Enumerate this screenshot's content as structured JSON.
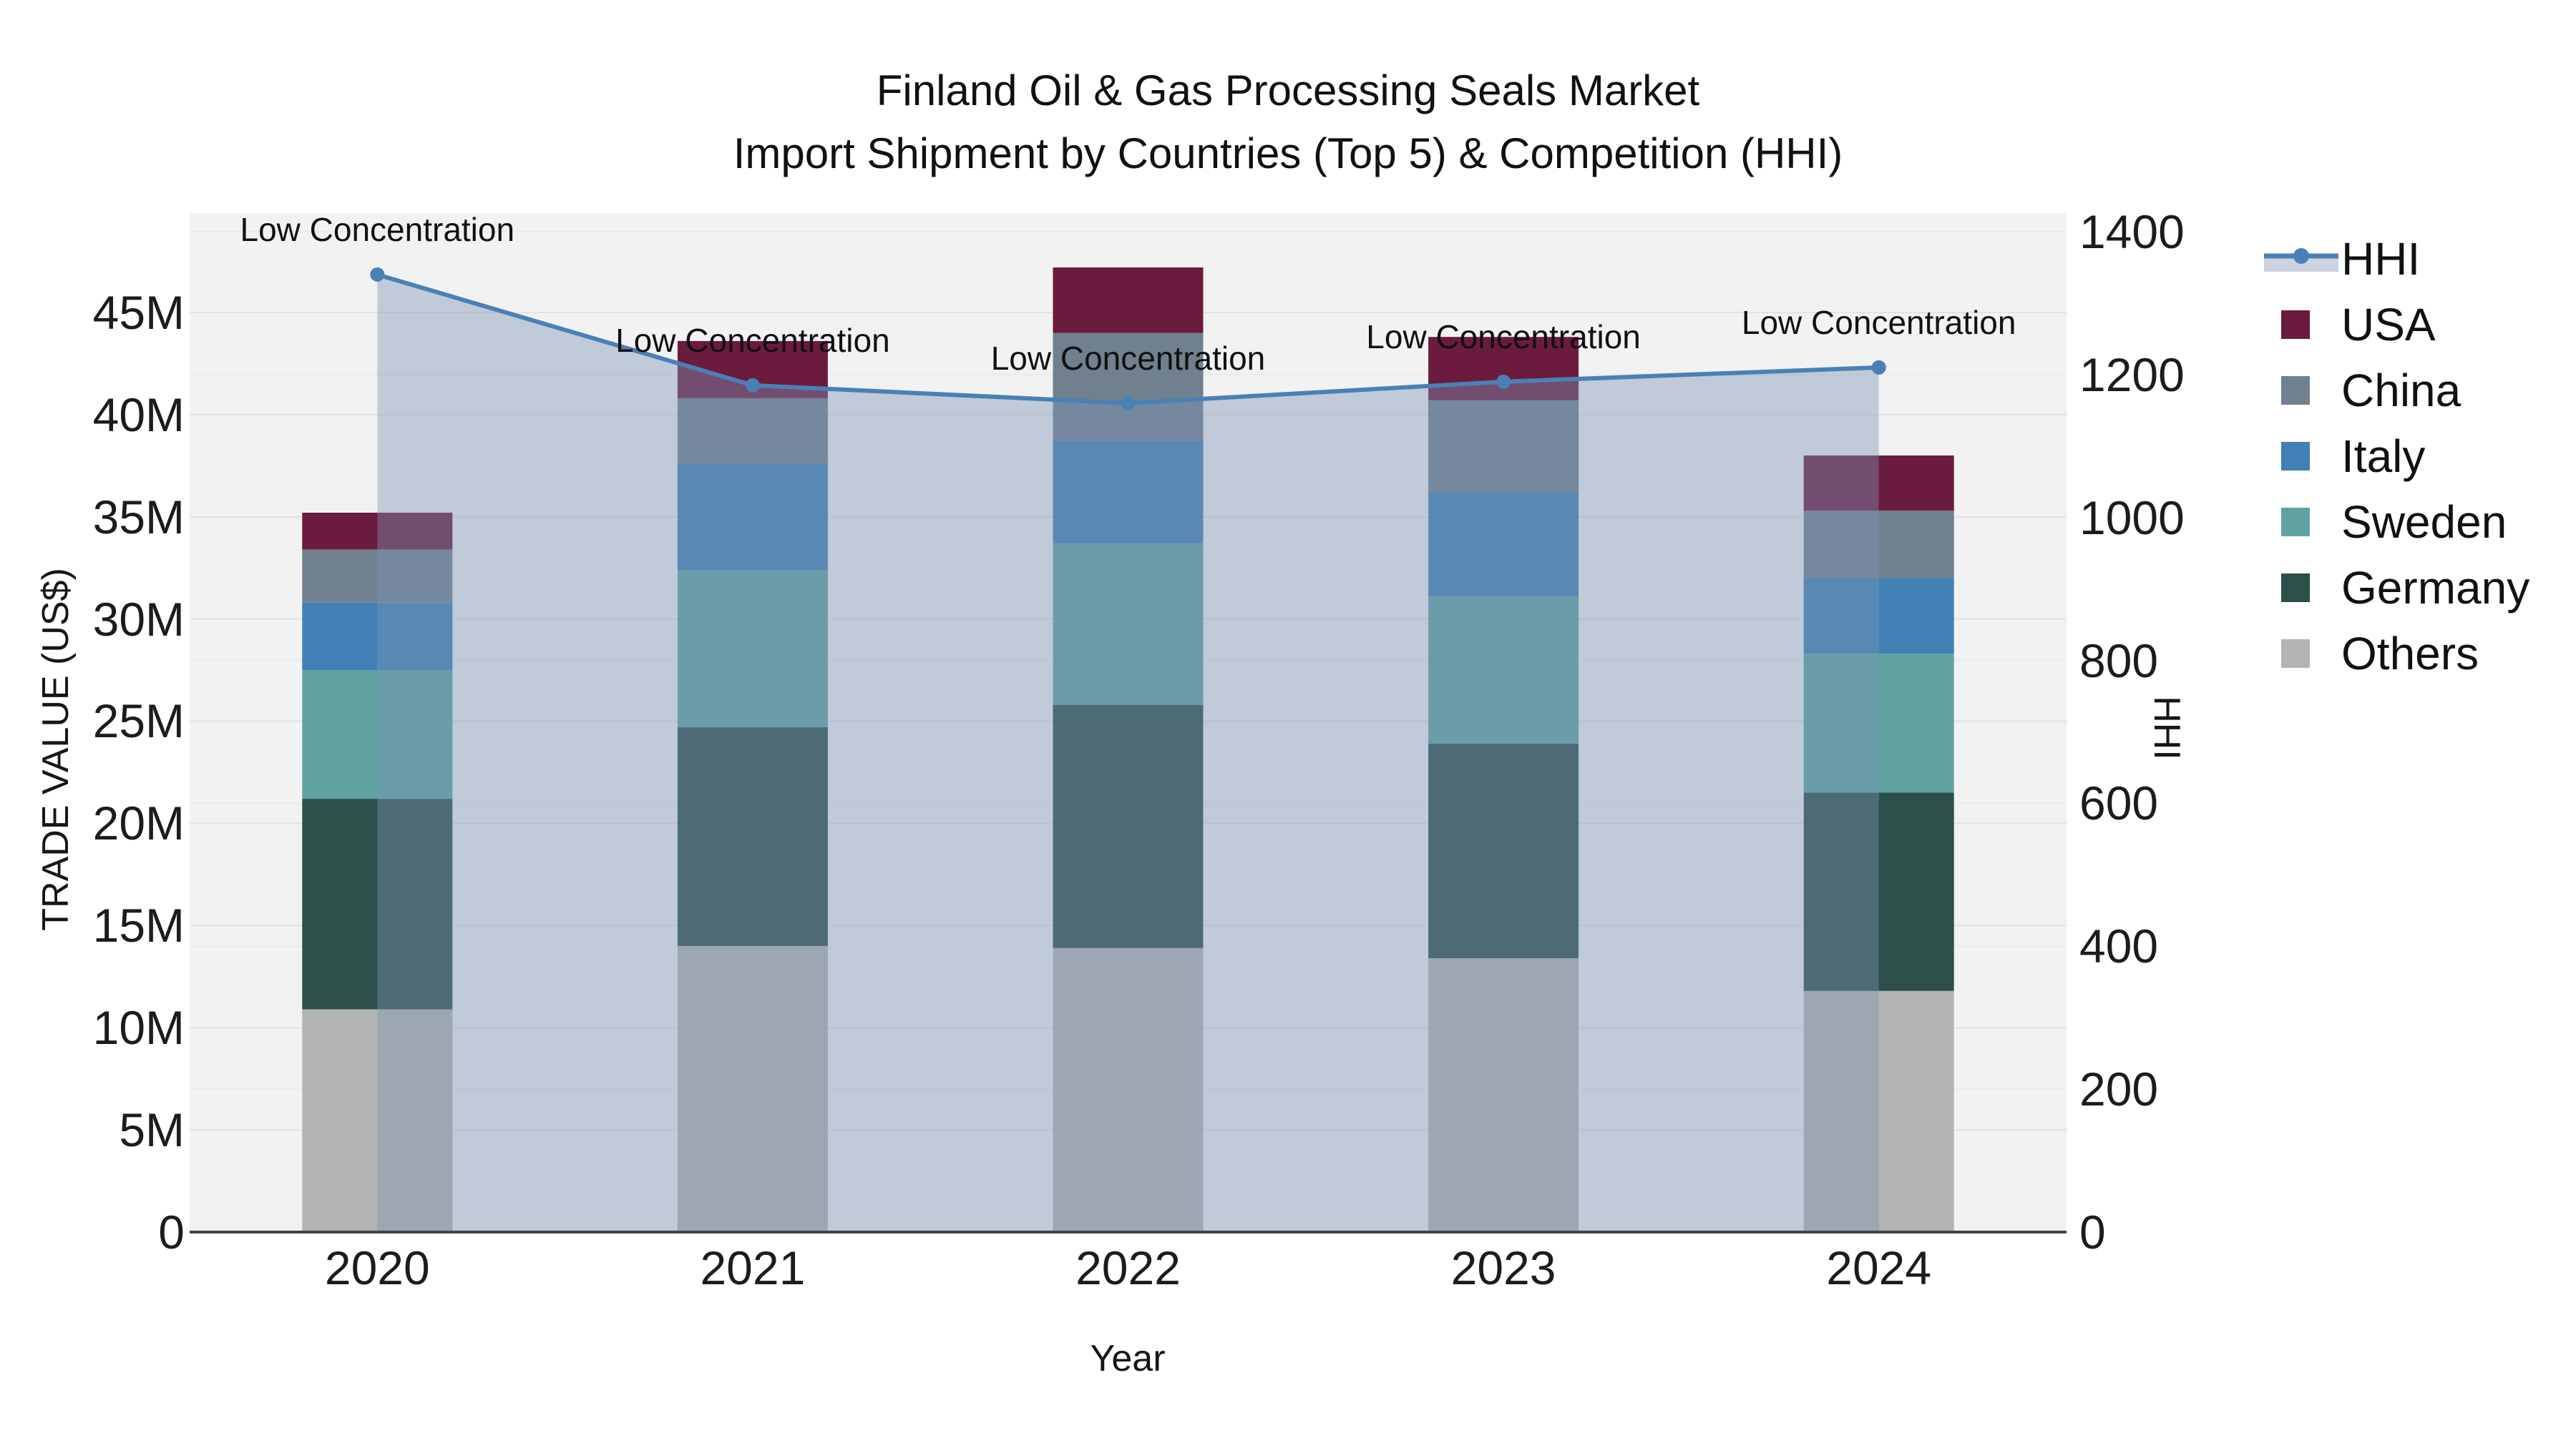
{
  "title": {
    "line1": "Finland Oil & Gas Processing Seals Market",
    "line2": "Import Shipment by Countries (Top 5) & Competition (HHI)"
  },
  "axes": {
    "x_title": "Year",
    "y_left_title": "TRADE VALUE (US$)",
    "y_right_title": "HHI",
    "y_left_ticks": [
      {
        "label": "0",
        "value": 0
      },
      {
        "label": "5M",
        "value": 5
      },
      {
        "label": "10M",
        "value": 10
      },
      {
        "label": "15M",
        "value": 15
      },
      {
        "label": "20M",
        "value": 20
      },
      {
        "label": "25M",
        "value": 25
      },
      {
        "label": "30M",
        "value": 30
      },
      {
        "label": "35M",
        "value": 35
      },
      {
        "label": "40M",
        "value": 40
      },
      {
        "label": "45M",
        "value": 45
      }
    ],
    "y_right_ticks": [
      {
        "label": "0",
        "value": 0
      },
      {
        "label": "200",
        "value": 200
      },
      {
        "label": "400",
        "value": 400
      },
      {
        "label": "600",
        "value": 600
      },
      {
        "label": "800",
        "value": 800
      },
      {
        "label": "1000",
        "value": 1000
      },
      {
        "label": "1200",
        "value": 1200
      },
      {
        "label": "1400",
        "value": 1400
      }
    ],
    "y_left_max": 49.86,
    "y_right_max": 1426
  },
  "chart_data": {
    "type": "bar",
    "subtype": "stacked-bars-with-line",
    "categories": [
      "2020",
      "2021",
      "2022",
      "2023",
      "2024"
    ],
    "value_unit": "Trade value, millions US$",
    "series": [
      {
        "name": "Others",
        "color": "#b3b5b2",
        "values": [
          10.9,
          14.0,
          13.9,
          13.4,
          11.8
        ]
      },
      {
        "name": "Germany",
        "color": "#2c4f4a",
        "values": [
          10.3,
          10.7,
          11.9,
          10.5,
          9.7
        ]
      },
      {
        "name": "Sweden",
        "color": "#60a2a1",
        "values": [
          6.3,
          7.7,
          7.9,
          7.2,
          6.8
        ]
      },
      {
        "name": "Italy",
        "color": "#4180b5",
        "values": [
          3.3,
          5.2,
          5.0,
          5.1,
          3.7
        ]
      },
      {
        "name": "China",
        "color": "#71808f",
        "values": [
          2.6,
          3.2,
          5.3,
          4.5,
          3.3
        ]
      },
      {
        "name": "USA",
        "color": "#6b1b3e",
        "values": [
          1.8,
          2.8,
          3.2,
          3.1,
          2.7
        ]
      }
    ],
    "bar_totals": [
      35.2,
      43.6,
      47.2,
      43.8,
      38.0
    ],
    "line_series": {
      "name": "HHI",
      "axis": "right",
      "color": "#4a80b6",
      "fill_color": "rgba(125,148,180,0.42)",
      "values": [
        1340,
        1185,
        1160,
        1190,
        1210
      ]
    },
    "annotations": [
      {
        "category": "2020",
        "text": "Low Concentration"
      },
      {
        "category": "2021",
        "text": "Low Concentration"
      },
      {
        "category": "2022",
        "text": "Low Concentration"
      },
      {
        "category": "2023",
        "text": "Low Concentration"
      },
      {
        "category": "2024",
        "text": "Low Concentration"
      }
    ],
    "legend": [
      "HHI",
      "USA",
      "China",
      "Italy",
      "Sweden",
      "Germany",
      "Others"
    ],
    "colors": {
      "plot_background": "#f2f2f2",
      "grid_left": "#e2e2e2",
      "grid_right": "#ebebeb",
      "axis_line": "#444444"
    }
  }
}
